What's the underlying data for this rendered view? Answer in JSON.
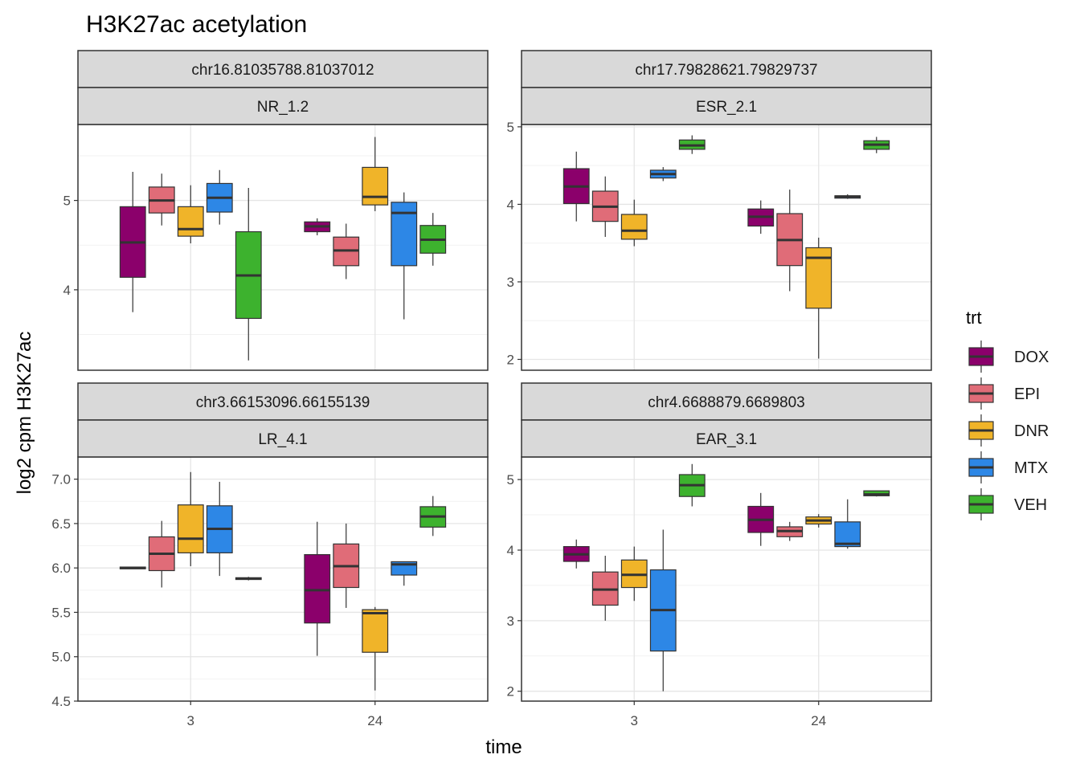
{
  "title": "H3K27ac acetylation",
  "xlabel": "time",
  "ylabel": "log2 cpm H3K27ac",
  "legend": {
    "title": "trt",
    "items": [
      {
        "label": "DOX",
        "color": "#8B006B"
      },
      {
        "label": "EPI",
        "color": "#E06C78"
      },
      {
        "label": "DNR",
        "color": "#F0B429"
      },
      {
        "label": "MTX",
        "color": "#2D87E6"
      },
      {
        "label": "VEH",
        "color": "#3DB22E"
      }
    ]
  },
  "chart_data": [
    {
      "type": "box",
      "strip_top": "chr16.81035788.81037012",
      "strip_bottom": "NR_1.2",
      "categories": [
        "3",
        "24"
      ],
      "ylim": [
        3.1,
        5.85
      ],
      "yticks": [
        4,
        5
      ],
      "ytick_labels": [
        "4",
        "5"
      ],
      "series": [
        {
          "name": "DOX",
          "boxes": [
            {
              "min": 3.75,
              "q1": 4.14,
              "median": 4.53,
              "q3": 4.93,
              "max": 5.32
            },
            {
              "min": 4.61,
              "q1": 4.65,
              "median": 4.71,
              "q3": 4.76,
              "max": 4.8
            }
          ]
        },
        {
          "name": "EPI",
          "boxes": [
            {
              "min": 4.72,
              "q1": 4.86,
              "median": 5.0,
              "q3": 5.15,
              "max": 5.3
            },
            {
              "min": 4.12,
              "q1": 4.27,
              "median": 4.44,
              "q3": 4.59,
              "max": 4.74
            }
          ]
        },
        {
          "name": "DNR",
          "boxes": [
            {
              "min": 4.52,
              "q1": 4.6,
              "median": 4.68,
              "q3": 4.93,
              "max": 5.17
            },
            {
              "min": 4.88,
              "q1": 4.95,
              "median": 5.04,
              "q3": 5.37,
              "max": 5.71
            }
          ]
        },
        {
          "name": "MTX",
          "boxes": [
            {
              "min": 4.73,
              "q1": 4.87,
              "median": 5.03,
              "q3": 5.19,
              "max": 5.34
            },
            {
              "min": 3.67,
              "q1": 4.27,
              "median": 4.86,
              "q3": 4.98,
              "max": 5.09
            }
          ]
        },
        {
          "name": "VEH",
          "boxes": [
            {
              "min": 3.21,
              "q1": 3.68,
              "median": 4.16,
              "q3": 4.65,
              "max": 5.14
            },
            {
              "min": 4.27,
              "q1": 4.41,
              "median": 4.56,
              "q3": 4.72,
              "max": 4.86
            }
          ]
        }
      ]
    },
    {
      "type": "box",
      "strip_top": "chr17.79828621.79829737",
      "strip_bottom": "ESR_2.1",
      "categories": [
        "3",
        "24"
      ],
      "ylim": [
        1.86,
        5.03
      ],
      "yticks": [
        2,
        3,
        4,
        5
      ],
      "ytick_labels": [
        "2",
        "3",
        "4",
        "5"
      ],
      "series": [
        {
          "name": "DOX",
          "boxes": [
            {
              "min": 3.78,
              "q1": 4.01,
              "median": 4.23,
              "q3": 4.46,
              "max": 4.68
            },
            {
              "min": 3.62,
              "q1": 3.72,
              "median": 3.84,
              "q3": 3.94,
              "max": 4.05
            }
          ]
        },
        {
          "name": "EPI",
          "boxes": [
            {
              "min": 3.58,
              "q1": 3.78,
              "median": 3.97,
              "q3": 4.17,
              "max": 4.36
            },
            {
              "min": 2.88,
              "q1": 3.21,
              "median": 3.54,
              "q3": 3.88,
              "max": 4.19
            }
          ]
        },
        {
          "name": "DNR",
          "boxes": [
            {
              "min": 3.46,
              "q1": 3.55,
              "median": 3.66,
              "q3": 3.87,
              "max": 4.06
            },
            {
              "min": 2.01,
              "q1": 2.66,
              "median": 3.31,
              "q3": 3.44,
              "max": 3.57
            }
          ]
        },
        {
          "name": "MTX",
          "boxes": [
            {
              "min": 4.3,
              "q1": 4.34,
              "median": 4.39,
              "q3": 4.44,
              "max": 4.48
            },
            {
              "min": 4.07,
              "q1": 4.08,
              "median": 4.1,
              "q3": 4.11,
              "max": 4.13
            }
          ]
        },
        {
          "name": "VEH",
          "boxes": [
            {
              "min": 4.65,
              "q1": 4.71,
              "median": 4.76,
              "q3": 4.83,
              "max": 4.89
            },
            {
              "min": 4.66,
              "q1": 4.71,
              "median": 4.77,
              "q3": 4.82,
              "max": 4.87
            }
          ]
        }
      ]
    },
    {
      "type": "box",
      "strip_top": "chr3.66153096.66155139",
      "strip_bottom": "LR_4.1",
      "categories": [
        "3",
        "24"
      ],
      "ylim": [
        4.5,
        7.25
      ],
      "yticks": [
        4.5,
        5.0,
        5.5,
        6.0,
        6.5,
        7.0
      ],
      "ytick_labels": [
        "4.5",
        "5.0",
        "5.5",
        "6.0",
        "6.5",
        "7.0"
      ],
      "series": [
        {
          "name": "DOX",
          "boxes": [
            {
              "min": 5.99,
              "q1": 5.99,
              "median": 6.0,
              "q3": 6.01,
              "max": 6.01
            },
            {
              "min": 5.01,
              "q1": 5.38,
              "median": 5.75,
              "q3": 6.15,
              "max": 6.52
            }
          ]
        },
        {
          "name": "EPI",
          "boxes": [
            {
              "min": 5.78,
              "q1": 5.97,
              "median": 6.16,
              "q3": 6.35,
              "max": 6.53
            },
            {
              "min": 5.55,
              "q1": 5.78,
              "median": 6.02,
              "q3": 6.27,
              "max": 6.5
            }
          ]
        },
        {
          "name": "DNR",
          "boxes": [
            {
              "min": 6.02,
              "q1": 6.17,
              "median": 6.33,
              "q3": 6.71,
              "max": 7.08
            },
            {
              "min": 4.62,
              "q1": 5.05,
              "median": 5.49,
              "q3": 5.53,
              "max": 5.56
            }
          ]
        },
        {
          "name": "MTX",
          "boxes": [
            {
              "min": 5.91,
              "q1": 6.17,
              "median": 6.44,
              "q3": 6.7,
              "max": 6.97
            },
            {
              "min": 5.8,
              "q1": 5.92,
              "median": 6.04,
              "q3": 6.07,
              "max": 6.07
            }
          ]
        },
        {
          "name": "VEH",
          "boxes": [
            {
              "min": 5.86,
              "q1": 5.87,
              "median": 5.88,
              "q3": 5.89,
              "max": 5.9
            },
            {
              "min": 6.36,
              "q1": 6.46,
              "median": 6.58,
              "q3": 6.69,
              "max": 6.81
            }
          ]
        }
      ]
    },
    {
      "type": "box",
      "strip_top": "chr4.6688879.6689803",
      "strip_bottom": "EAR_3.1",
      "categories": [
        "3",
        "24"
      ],
      "ylim": [
        1.86,
        5.32
      ],
      "yticks": [
        2,
        3,
        4,
        5
      ],
      "ytick_labels": [
        "2",
        "3",
        "4",
        "5"
      ],
      "series": [
        {
          "name": "DOX",
          "boxes": [
            {
              "min": 3.74,
              "q1": 3.84,
              "median": 3.94,
              "q3": 4.05,
              "max": 4.15
            },
            {
              "min": 4.06,
              "q1": 4.25,
              "median": 4.43,
              "q3": 4.62,
              "max": 4.81
            }
          ]
        },
        {
          "name": "EPI",
          "boxes": [
            {
              "min": 3.0,
              "q1": 3.22,
              "median": 3.44,
              "q3": 3.69,
              "max": 3.92
            },
            {
              "min": 4.13,
              "q1": 4.19,
              "median": 4.27,
              "q3": 4.33,
              "max": 4.4
            }
          ]
        },
        {
          "name": "DNR",
          "boxes": [
            {
              "min": 3.28,
              "q1": 3.47,
              "median": 3.65,
              "q3": 3.86,
              "max": 4.05
            },
            {
              "min": 4.32,
              "q1": 4.37,
              "median": 4.42,
              "q3": 4.47,
              "max": 4.51
            }
          ]
        },
        {
          "name": "MTX",
          "boxes": [
            {
              "min": 2.0,
              "q1": 2.57,
              "median": 3.15,
              "q3": 3.72,
              "max": 4.29
            },
            {
              "min": 4.02,
              "q1": 4.05,
              "median": 4.09,
              "q3": 4.4,
              "max": 4.72
            }
          ]
        },
        {
          "name": "VEH",
          "boxes": [
            {
              "min": 4.62,
              "q1": 4.76,
              "median": 4.92,
              "q3": 5.07,
              "max": 5.22
            },
            {
              "min": 4.76,
              "q1": 4.77,
              "median": 4.79,
              "q3": 4.84,
              "max": 4.84
            }
          ]
        }
      ]
    }
  ]
}
